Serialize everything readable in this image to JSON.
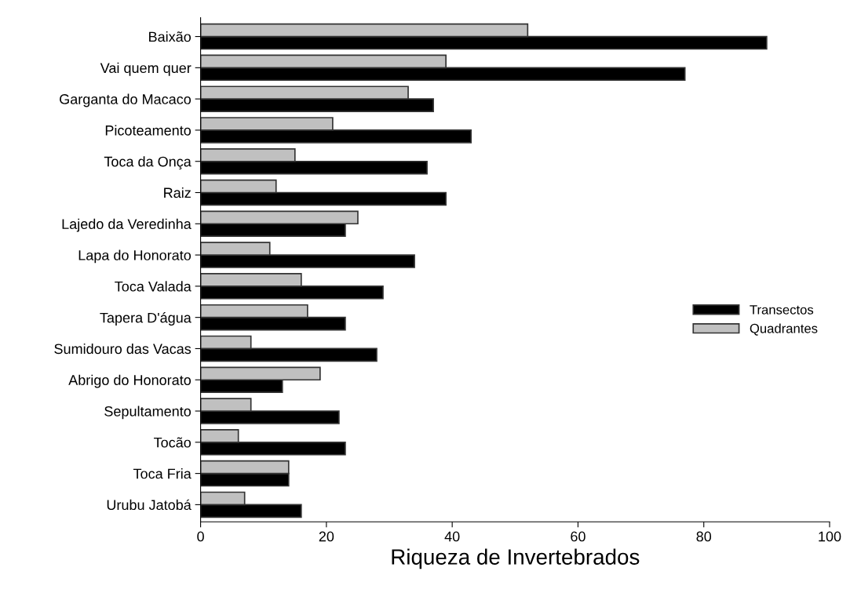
{
  "chart_data": {
    "type": "bar",
    "orientation": "horizontal",
    "xlabel": "Riqueza de Invertebrados",
    "categories": [
      "Baixão",
      "Vai quem quer",
      "Garganta do Macaco",
      "Picoteamento",
      "Toca da Onça",
      "Raiz",
      "Lajedo da Veredinha",
      "Lapa do Honorato",
      "Toca Valada",
      "Tapera D'água",
      "Sumidouro das Vacas",
      "Abrigo do Honorato",
      "Sepultamento",
      "Tocão",
      "Toca Fria",
      "Urubu Jatobá"
    ],
    "series": [
      {
        "name": "Transectos",
        "color": "#000000",
        "values": [
          90,
          77,
          37,
          43,
          36,
          39,
          23,
          34,
          29,
          23,
          28,
          13,
          22,
          23,
          14,
          16
        ]
      },
      {
        "name": "Quadrantes",
        "color": "#c0c0c0",
        "values": [
          52,
          39,
          33,
          21,
          15,
          12,
          25,
          11,
          16,
          17,
          8,
          19,
          8,
          6,
          14,
          7
        ]
      }
    ],
    "xlim": [
      0,
      100
    ],
    "xticks": [
      0,
      20,
      40,
      60,
      80,
      100
    ],
    "grid": false,
    "legend": "right"
  }
}
